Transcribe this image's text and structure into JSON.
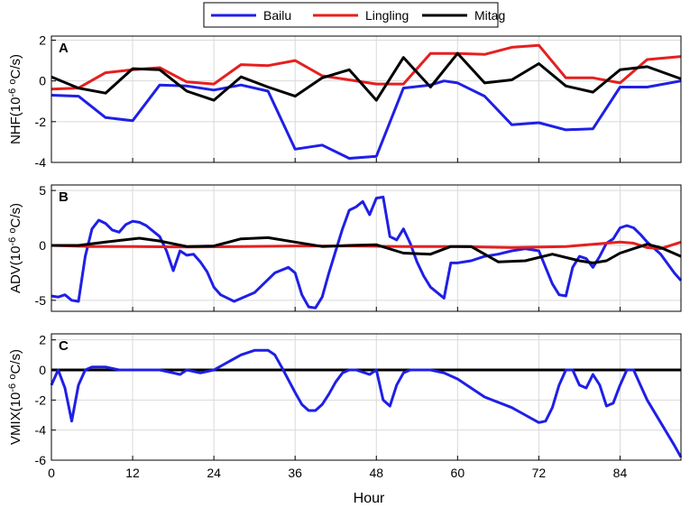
{
  "chart_data": {
    "type": "line",
    "xlabel": "Hour",
    "xlim": [
      0,
      93
    ],
    "xticks": [
      0,
      12,
      24,
      36,
      48,
      60,
      72,
      84
    ],
    "grid": true,
    "legend": {
      "placement": "top-center",
      "entries": [
        {
          "name": "Bailu",
          "color": "#1f1fe6"
        },
        {
          "name": "Lingling",
          "color": "#e61f1f"
        },
        {
          "name": "Mitag",
          "color": "#000000"
        }
      ]
    },
    "panels": [
      {
        "letter": "A",
        "ylabel_main": "NHF(10",
        "ylabel_exp": "-6",
        "ylabel_sup": "o",
        "ylabel_tail": "C/s)",
        "ylim": [
          -4,
          2.2
        ],
        "yticks": [
          -4,
          -2,
          0,
          2
        ],
        "series": [
          {
            "name": "Bailu",
            "color": "#1f1fe6",
            "x": [
              0,
              4,
              8,
              12,
              16,
              20,
              24,
              28,
              32,
              36,
              40,
              44,
              48,
              52,
              56,
              58,
              60,
              64,
              68,
              72,
              76,
              80,
              84,
              88,
              93
            ],
            "y": [
              -0.7,
              -0.75,
              -1.8,
              -1.95,
              -0.2,
              -0.25,
              -0.45,
              -0.2,
              -0.5,
              -3.35,
              -3.15,
              -3.8,
              -3.7,
              -0.35,
              -0.2,
              0.0,
              -0.1,
              -0.75,
              -2.15,
              -2.05,
              -2.4,
              -2.35,
              -0.3,
              -0.3,
              0.0
            ]
          },
          {
            "name": "Lingling",
            "color": "#e61f1f",
            "x": [
              0,
              4,
              8,
              12,
              16,
              20,
              24,
              28,
              32,
              36,
              40,
              44,
              48,
              52,
              56,
              60,
              64,
              68,
              72,
              76,
              80,
              84,
              88,
              93
            ],
            "y": [
              -0.4,
              -0.35,
              0.4,
              0.55,
              0.65,
              -0.05,
              -0.15,
              0.8,
              0.75,
              1.0,
              0.25,
              0.05,
              -0.15,
              -0.15,
              1.35,
              1.35,
              1.3,
              1.65,
              1.75,
              0.15,
              0.15,
              -0.1,
              1.05,
              1.2
            ]
          },
          {
            "name": "Mitag",
            "color": "#000000",
            "x": [
              0,
              4,
              8,
              12,
              16,
              20,
              24,
              28,
              32,
              36,
              40,
              44,
              48,
              52,
              56,
              60,
              64,
              68,
              72,
              76,
              80,
              84,
              88,
              93
            ],
            "y": [
              0.2,
              -0.35,
              -0.6,
              0.6,
              0.55,
              -0.5,
              -0.95,
              0.2,
              -0.3,
              -0.75,
              0.15,
              0.55,
              -0.95,
              1.15,
              -0.3,
              1.35,
              -0.1,
              0.05,
              0.85,
              -0.25,
              -0.55,
              0.55,
              0.7,
              0.1
            ]
          }
        ]
      },
      {
        "letter": "B",
        "ylabel_main": "ADV(10",
        "ylabel_exp": "-6",
        "ylabel_sup": "o",
        "ylabel_tail": "C/s)",
        "ylim": [
          -6,
          5.5
        ],
        "yticks": [
          -5,
          0,
          5
        ],
        "series": [
          {
            "name": "Bailu",
            "color": "#1f1fe6",
            "x": [
              0,
              1,
              2,
              3,
              4,
              5,
              6,
              7,
              8,
              9,
              10,
              11,
              12,
              13,
              14,
              16,
              17,
              18,
              19,
              20,
              21,
              22,
              23,
              24,
              25,
              27,
              30,
              33,
              35,
              36,
              37,
              38,
              39,
              40,
              41,
              42,
              43,
              44,
              45,
              46,
              47,
              48,
              49,
              50,
              51,
              52,
              53,
              54,
              55,
              56,
              57,
              58,
              59,
              60,
              62,
              64,
              66,
              68,
              70,
              72,
              73,
              74,
              75,
              76,
              77,
              78,
              79,
              80,
              81,
              82,
              83,
              84,
              85,
              86,
              87,
              88,
              90,
              92,
              93
            ],
            "y": [
              -4.6,
              -4.7,
              -4.5,
              -5.0,
              -5.1,
              -1.0,
              1.5,
              2.3,
              2.0,
              1.4,
              1.2,
              1.9,
              2.2,
              2.1,
              1.8,
              0.8,
              -0.5,
              -2.3,
              -0.5,
              -0.9,
              -0.8,
              -1.5,
              -2.4,
              -3.8,
              -4.5,
              -5.1,
              -4.3,
              -2.5,
              -2.0,
              -2.5,
              -4.5,
              -5.6,
              -5.7,
              -4.7,
              -2.5,
              -0.5,
              1.5,
              3.2,
              3.5,
              4.0,
              2.8,
              4.3,
              4.4,
              0.8,
              0.5,
              1.5,
              0.2,
              -1.5,
              -2.8,
              -3.8,
              -4.3,
              -4.8,
              -1.6,
              -1.6,
              -1.4,
              -1.0,
              -0.8,
              -0.5,
              -0.3,
              -0.5,
              -2.0,
              -3.5,
              -4.5,
              -4.6,
              -2.0,
              -1.0,
              -1.2,
              -2.0,
              -1.0,
              0.2,
              0.6,
              1.6,
              1.8,
              1.6,
              1.0,
              0.3,
              -0.8,
              -2.5,
              -3.2
            ]
          },
          {
            "name": "Lingling",
            "color": "#e61f1f",
            "x": [
              0,
              6,
              12,
              20,
              28,
              36,
              44,
              52,
              60,
              68,
              76,
              80,
              84,
              86,
              88,
              90,
              93
            ],
            "y": [
              0.0,
              -0.1,
              -0.1,
              -0.15,
              -0.1,
              -0.05,
              -0.05,
              -0.1,
              -0.1,
              -0.2,
              -0.1,
              0.1,
              0.3,
              0.2,
              -0.2,
              -0.3,
              0.3
            ]
          },
          {
            "name": "Mitag",
            "color": "#000000",
            "x": [
              0,
              4,
              8,
              10,
              13,
              16,
              20,
              24,
              28,
              32,
              36,
              40,
              44,
              48,
              52,
              56,
              59,
              62,
              66,
              70,
              74,
              78,
              80,
              82,
              84,
              86,
              88,
              90,
              93
            ],
            "y": [
              0.0,
              0.0,
              0.3,
              0.45,
              0.65,
              0.4,
              -0.1,
              -0.05,
              0.6,
              0.7,
              0.3,
              -0.1,
              0.0,
              0.05,
              -0.7,
              -0.8,
              -0.1,
              -0.1,
              -1.5,
              -1.4,
              -0.8,
              -1.4,
              -1.6,
              -1.4,
              -0.7,
              -0.3,
              0.1,
              -0.2,
              -1.0
            ]
          }
        ]
      },
      {
        "letter": "C",
        "ylabel_main": "VMIX(10",
        "ylabel_exp": "-6",
        "ylabel_sup": "o",
        "ylabel_tail": "C/s)",
        "ylim": [
          -6,
          2.4
        ],
        "yticks": [
          -6,
          -4,
          -2,
          0,
          2
        ],
        "series": [
          {
            "name": "Lingling",
            "color": "#e61f1f",
            "x": [
              0,
              93
            ],
            "y": [
              0.0,
              0.0
            ]
          },
          {
            "name": "Mitag",
            "color": "#000000",
            "x": [
              0,
              93
            ],
            "y": [
              0.0,
              0.0
            ]
          },
          {
            "name": "Bailu",
            "color": "#1f1fe6",
            "x": [
              0,
              1,
              2,
              3,
              4,
              5,
              6,
              7,
              8,
              9,
              10,
              12,
              16,
              18,
              19,
              20,
              22,
              24,
              26,
              28,
              30,
              32,
              33,
              34,
              36,
              37,
              38,
              39,
              40,
              41,
              42,
              43,
              44,
              45,
              47,
              48,
              49,
              50,
              51,
              52,
              53,
              54,
              56,
              58,
              60,
              62,
              64,
              68,
              70,
              72,
              73,
              74,
              75,
              76,
              77,
              78,
              79,
              80,
              81,
              82,
              83,
              84,
              85,
              86,
              87,
              88,
              90,
              92,
              93
            ],
            "y": [
              -1.0,
              0.0,
              -1.2,
              -3.4,
              -1.0,
              0.0,
              0.2,
              0.2,
              0.2,
              0.1,
              0.0,
              0.0,
              0.0,
              -0.2,
              -0.3,
              0.0,
              -0.2,
              0.0,
              0.5,
              1.0,
              1.3,
              1.3,
              1.0,
              0.2,
              -1.5,
              -2.3,
              -2.7,
              -2.7,
              -2.3,
              -1.6,
              -0.8,
              -0.2,
              0.0,
              0.0,
              -0.3,
              0.0,
              -2.0,
              -2.4,
              -1.0,
              -0.2,
              0.0,
              0.0,
              0.0,
              -0.2,
              -0.6,
              -1.2,
              -1.8,
              -2.5,
              -3.0,
              -3.5,
              -3.4,
              -2.5,
              -1.0,
              0.0,
              0.0,
              -1.0,
              -1.2,
              -0.3,
              -1.0,
              -2.4,
              -2.2,
              -1.0,
              0.0,
              0.0,
              -1.0,
              -2.0,
              -3.5,
              -5.0,
              -5.8
            ]
          }
        ]
      }
    ]
  }
}
